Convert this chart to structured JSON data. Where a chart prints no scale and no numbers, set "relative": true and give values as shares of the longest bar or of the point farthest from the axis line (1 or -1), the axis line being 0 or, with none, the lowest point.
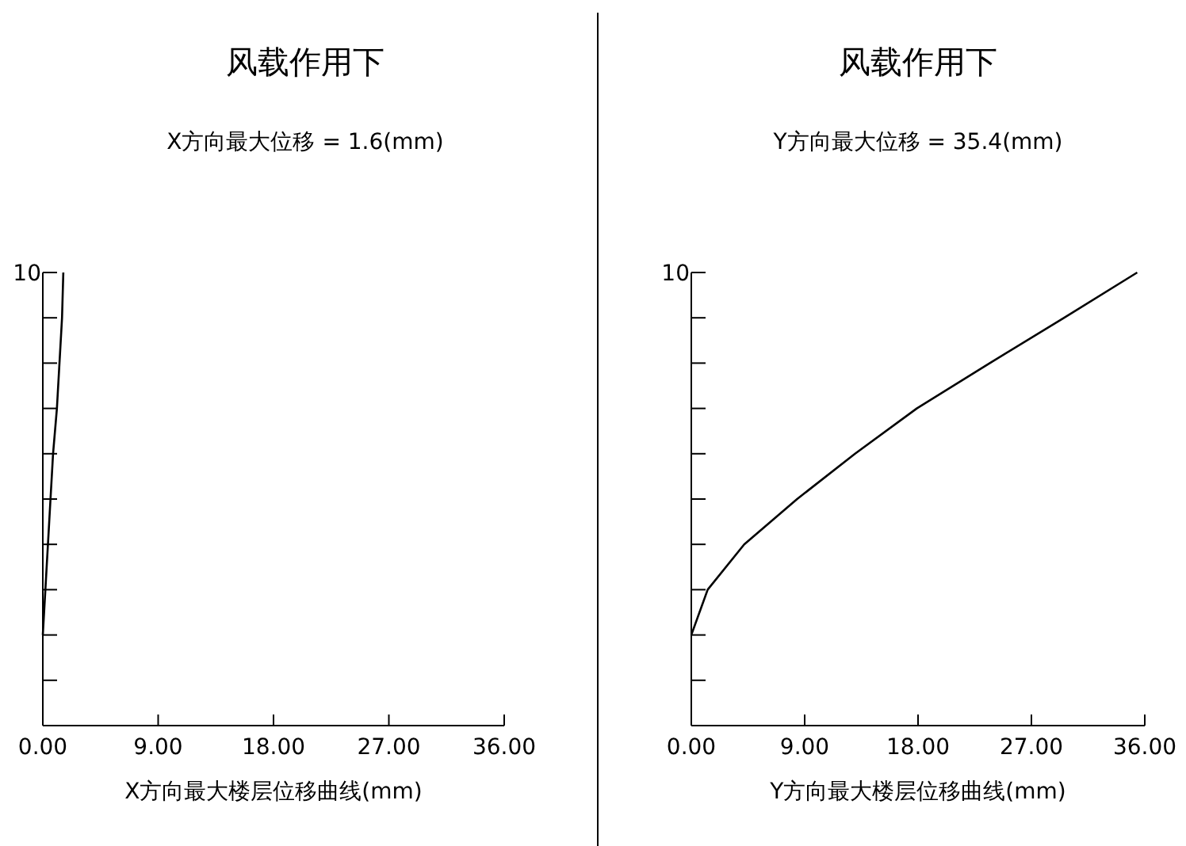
{
  "chart_data": [
    {
      "type": "line",
      "title": "风载作用下",
      "subtitle": "X方向最大位移 = 1.6(mm)",
      "xlabel": "X方向最大楼层位移曲线(mm)",
      "annotations": [
        "10"
      ],
      "relative": true,
      "x": [
        0,
        0.2,
        0.4,
        0.6,
        0.8,
        1.1,
        1.3,
        1.5,
        1.6
      ],
      "values": [
        0.2,
        0.3,
        0.4,
        0.5,
        0.6,
        0.7,
        0.8,
        0.9,
        1.0
      ],
      "color": "#000000",
      "xlim": [
        0,
        36
      ],
      "xticks": [
        {
          "value": 0,
          "label": "0.00"
        },
        {
          "value": 9,
          "label": "9.00"
        },
        {
          "value": 18,
          "label": "18.00"
        },
        {
          "value": 27,
          "label": "27.00"
        },
        {
          "value": 36,
          "label": "36.00"
        }
      ]
    },
    {
      "type": "line",
      "title": "风载作用下",
      "subtitle": "Y方向最大位移 = 35.4(mm)",
      "xlabel": "Y方向最大楼层位移曲线(mm)",
      "annotations": [
        "10"
      ],
      "relative": true,
      "x": [
        0,
        1.3,
        4.2,
        8.4,
        13.0,
        17.9,
        23.7,
        29.6,
        35.4
      ],
      "values": [
        0.2,
        0.3,
        0.4,
        0.5,
        0.6,
        0.7,
        0.8,
        0.9,
        1.0
      ],
      "color": "#000000",
      "xlim": [
        0,
        36
      ],
      "xticks": [
        {
          "value": 0,
          "label": "0.00"
        },
        {
          "value": 9,
          "label": "9.00"
        },
        {
          "value": 18,
          "label": "18.00"
        },
        {
          "value": 27,
          "label": "27.00"
        },
        {
          "value": 36,
          "label": "36.00"
        }
      ]
    }
  ]
}
